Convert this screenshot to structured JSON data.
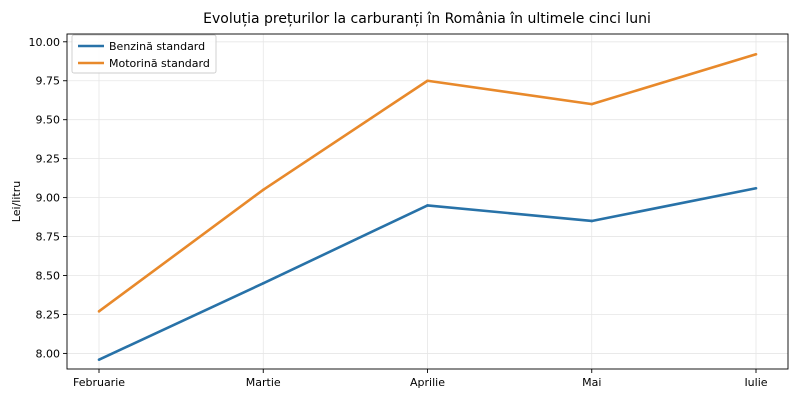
{
  "chart_data": {
    "type": "line",
    "title": "Evoluția prețurilor la carburanți în România în ultimele cinci luni",
    "xlabel": "",
    "ylabel": "Lei/litru",
    "categories": [
      "Februarie",
      "Martie",
      "Aprilie",
      "Mai",
      "Iulie"
    ],
    "ylim": [
      7.9,
      10.05
    ],
    "yticks": [
      8.0,
      8.25,
      8.5,
      8.75,
      9.0,
      9.25,
      9.5,
      9.75,
      10.0
    ],
    "ytick_labels": [
      "8.00",
      "8.25",
      "8.50",
      "8.75",
      "9.00",
      "9.25",
      "9.50",
      "9.75",
      "10.00"
    ],
    "grid": true,
    "legend_position": "top-left",
    "series": [
      {
        "name": "Benzină standard",
        "color": "#2872a8",
        "values": [
          7.96,
          8.45,
          8.95,
          8.85,
          9.06
        ]
      },
      {
        "name": "Motorină standard",
        "color": "#e8892b",
        "values": [
          8.27,
          9.05,
          9.75,
          9.6,
          9.92
        ]
      }
    ]
  }
}
